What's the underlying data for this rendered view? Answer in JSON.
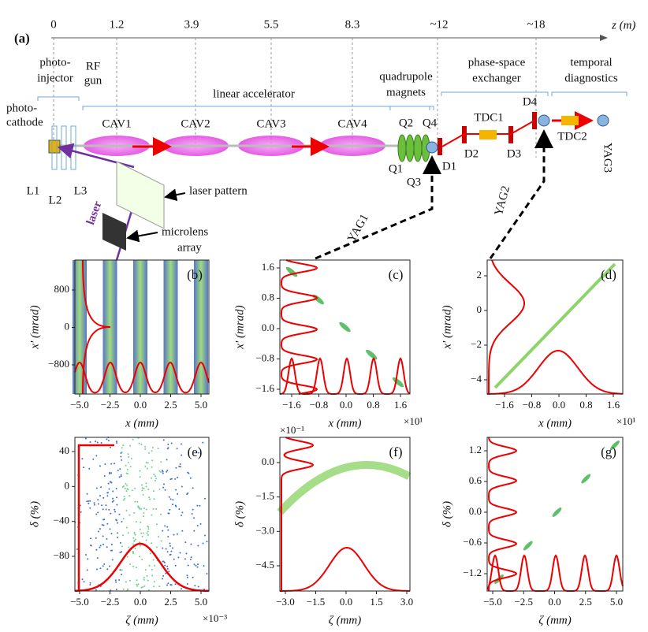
{
  "schematic": {
    "panel_label": "(a)",
    "z_axis": {
      "label": "z (m)",
      "ticks": [
        "0",
        "1.2",
        "3.9",
        "5.5",
        "8.3",
        "~12",
        "~18"
      ]
    },
    "sections": [
      {
        "lines": [
          "photo-",
          "injector"
        ]
      },
      {
        "lines": [
          "RF",
          "gun"
        ]
      },
      {
        "lines": [
          "linear accelerator"
        ]
      },
      {
        "lines": [
          "quadrupole",
          "magnets"
        ]
      },
      {
        "lines": [
          "phase-space",
          "exchanger"
        ]
      },
      {
        "lines": [
          "temporal",
          "diagnostics"
        ]
      }
    ],
    "photocathode": [
      "photo-",
      "cathode"
    ],
    "components": {
      "cavities": [
        "CAV1",
        "CAV2",
        "CAV3",
        "CAV4"
      ],
      "quads": [
        "Q1",
        "Q2",
        "Q3",
        "Q4"
      ],
      "dipoles": [
        "D1",
        "D2",
        "D3",
        "D4"
      ],
      "tdcs": [
        "TDC1",
        "TDC2"
      ],
      "screens": [
        "YAG1",
        "YAG2",
        "YAG3"
      ],
      "lenses": [
        "L1",
        "L2",
        "L3"
      ]
    },
    "laser": "laser",
    "laser_pattern": "laser pattern",
    "microlens": [
      "microlens",
      "array"
    ]
  },
  "panels": [
    {
      "label": "(b)",
      "xlabel": "x (mm)",
      "ylabel": "x′ (mrad)",
      "xticks": [
        "−5.0",
        "−2.5",
        "0.0",
        "2.5",
        "5.0"
      ],
      "yticks": [
        "800",
        "0",
        "−800"
      ]
    },
    {
      "label": "(c)",
      "xlabel": "x (mm)",
      "ylabel": "x′ (mrad)",
      "xticks": [
        "−1.6",
        "−0.8",
        "0.0",
        "0.8",
        "1.6"
      ],
      "yticks": [
        "1.6",
        "0.8",
        "0.0",
        "−0.8",
        "−1.6"
      ],
      "x_offset": "×10¹"
    },
    {
      "label": "(d)",
      "xlabel": "x (mm)",
      "ylabel": "x′ (mrad)",
      "xticks": [
        "−1.6",
        "−0.8",
        "0.0",
        "0.8",
        "1.6"
      ],
      "yticks": [
        "2",
        "0",
        "−2",
        "−4"
      ],
      "x_offset": "×10¹"
    },
    {
      "label": "(e)",
      "xlabel": "ζ (mm)",
      "ylabel": "δ (%)",
      "xticks": [
        "−5.0",
        "−2.5",
        "0.0",
        "2.5",
        "5.0"
      ],
      "yticks": [
        "40",
        "0",
        "−40",
        "−80"
      ],
      "x_offset": "×10⁻³"
    },
    {
      "label": "(f)",
      "xlabel": "ζ (mm)",
      "ylabel": "δ (%)",
      "xticks": [
        "−3.0",
        "−1.5",
        "0.0",
        "1.5",
        "3.0"
      ],
      "yticks": [
        "0.0",
        "−1.5",
        "−3.0",
        "−4.5"
      ],
      "y_offset": "×10⁻¹"
    },
    {
      "label": "(g)",
      "xlabel": "ζ (mm)",
      "ylabel": "δ (%)",
      "xticks": [
        "−5.0",
        "−2.5",
        "0.0",
        "2.5",
        "5.0"
      ],
      "yticks": [
        "1.2",
        "0.6",
        "0.0",
        "−0.6",
        "−1.2"
      ]
    }
  ]
}
